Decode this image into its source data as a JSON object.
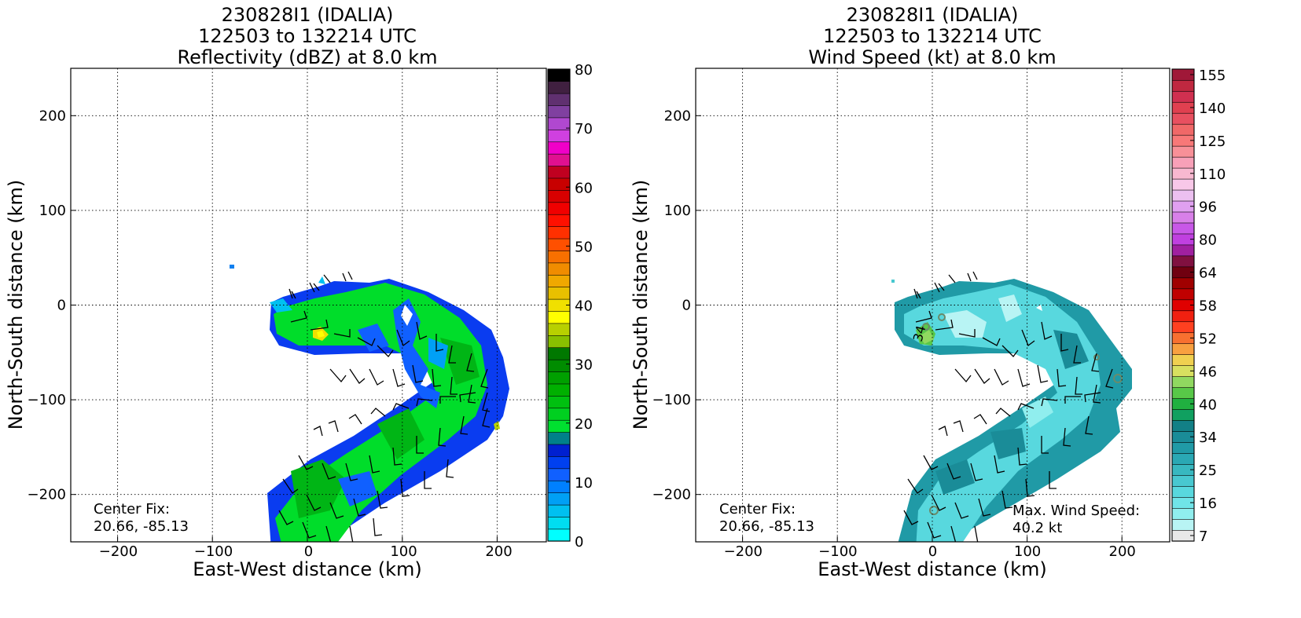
{
  "panels": [
    {
      "title_lines": [
        "230828I1 (IDALIA)",
        "122503 to 132214 UTC",
        "Reflectivity (dBZ) at 8.0 km"
      ],
      "colorbar_ticks": [
        "80",
        "70",
        "60",
        "50",
        "40",
        "30",
        "20",
        "10",
        "0"
      ],
      "notes": [
        "Center Fix:",
        "20.66, -85.13"
      ]
    },
    {
      "title_lines": [
        "230828I1 (IDALIA)",
        "122503 to 132214 UTC",
        "Wind Speed (kt) at 8.0 km"
      ],
      "colorbar_ticks": [
        "155",
        "140",
        "125",
        "110",
        "96",
        "80",
        "64",
        "58",
        "52",
        "46",
        "40",
        "34",
        "25",
        "16",
        "7"
      ],
      "notes": [
        "Center Fix:",
        "20.66, -85.13",
        "Max. Wind Speed:",
        "40.2 kt"
      ]
    }
  ],
  "chart_data": [
    {
      "type": "heatmap",
      "title": "230828I1 (IDALIA) 122503 to 132214 UTC Reflectivity (dBZ) at 8.0 km",
      "xlabel": "East-West distance (km)",
      "ylabel": "North-South distance (km)",
      "xlim": [
        -250,
        250
      ],
      "ylim": [
        -250,
        250
      ],
      "x_ticks": [
        -200,
        -100,
        0,
        100,
        200
      ],
      "y_ticks": [
        -200,
        -100,
        0,
        100,
        200
      ],
      "grid": true,
      "colorbar": {
        "label": "Reflectivity (dBZ)",
        "min": 0,
        "max": 80,
        "ticks": [
          0,
          10,
          20,
          30,
          40,
          50,
          60,
          70,
          80
        ],
        "colors": [
          "#00ffff",
          "#00ddf0",
          "#00c0f0",
          "#00a0f5",
          "#0080ff",
          "#1060ff",
          "#0040f0",
          "#0020d0",
          "#00808a",
          "#00e030",
          "#00d020",
          "#00c010",
          "#00b000",
          "#00a000",
          "#008c00",
          "#007800",
          "#88c000",
          "#b8d000",
          "#ffff00",
          "#f0e000",
          "#e8c000",
          "#f0a800",
          "#f08c00",
          "#f87000",
          "#ff5000",
          "#ff3000",
          "#ff1000",
          "#f00000",
          "#d80000",
          "#c80000",
          "#c00020",
          "#e01090",
          "#f000c8",
          "#d040e0",
          "#b048d0",
          "#8040a0",
          "#603070",
          "#402040",
          "#000000"
        ]
      },
      "field_extent": "Reflectivity mostly 0–30 dBZ in a curved band from about x -40 to 215 km and y 25 to -250 km; isolated pixel near (-78, 42)",
      "wind_barbs": true,
      "annotation": [
        "Center Fix:",
        "20.66, -85.13"
      ]
    },
    {
      "type": "heatmap",
      "title": "230828I1 (IDALIA) 122503 to 132214 UTC Wind Speed (kt) at 8.0 km",
      "xlabel": "East-West distance (km)",
      "ylabel": "North-South distance (km)",
      "xlim": [
        -250,
        250
      ],
      "ylim": [
        -250,
        250
      ],
      "x_ticks": [
        -200,
        -100,
        0,
        100,
        200
      ],
      "y_ticks": [
        -200,
        -100,
        0,
        100,
        200
      ],
      "grid": true,
      "colorbar": {
        "label": "Wind Speed (kt)",
        "ticks": [
          7,
          16,
          25,
          34,
          40,
          46,
          52,
          58,
          64,
          80,
          96,
          110,
          125,
          140,
          155
        ],
        "colors": [
          "#e8e8e8",
          "#b8f4f4",
          "#90eeee",
          "#70e4e8",
          "#58d8de",
          "#48c8d0",
          "#38b8c0",
          "#2aa8b4",
          "#209aa6",
          "#1a8c98",
          "#128086",
          "#10a060",
          "#20b040",
          "#58c848",
          "#90d860",
          "#d8e060",
          "#f0d050",
          "#f8a040",
          "#f87030",
          "#ff4020",
          "#f02010",
          "#e00000",
          "#c00000",
          "#a00000",
          "#700010",
          "#801040",
          "#a020a0",
          "#c040e0",
          "#c858e8",
          "#d880e8",
          "#e0a0f0",
          "#ecc0f0",
          "#f8c8e8",
          "#f8b8d0",
          "#f8a0b8",
          "#f89098",
          "#f87878",
          "#f06868",
          "#e85060",
          "#e04050",
          "#d03050",
          "#c02840",
          "#a01838"
        ]
      },
      "field_extent": "Wind speed mostly 7–40 kt in the same curved band; small 34 kt contour near (-5, -30)",
      "wind_barbs": true,
      "max_wind_speed_kt": 40.2,
      "annotation": [
        "Center Fix:",
        "20.66, -85.13",
        "Max. Wind Speed:",
        "40.2 kt"
      ]
    }
  ]
}
